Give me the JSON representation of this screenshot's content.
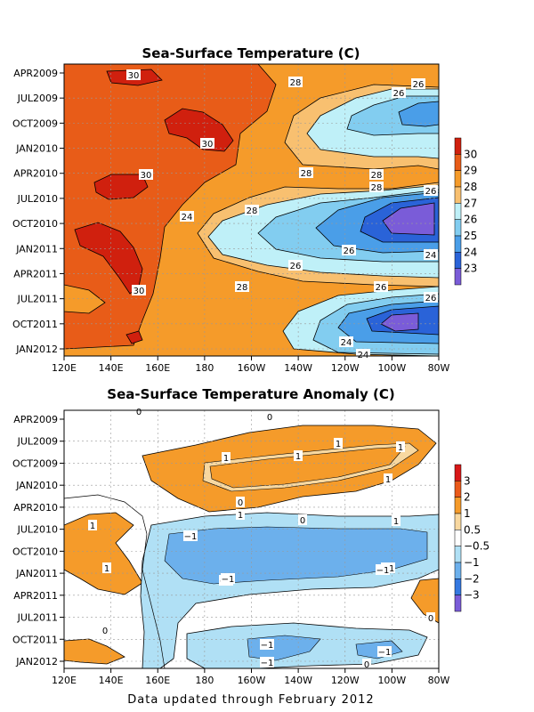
{
  "footer": "Data updated through February 2012",
  "chart_data": [
    {
      "type": "heatmap",
      "title": "Sea-Surface Temperature (C)",
      "x_tick_labels": [
        "120E",
        "140E",
        "160E",
        "180",
        "160W",
        "140W",
        "120W",
        "100W",
        "80W"
      ],
      "y_tick_labels": [
        "APR2009",
        "JUL2009",
        "OCT2009",
        "JAN2010",
        "APR2010",
        "JUL2010",
        "OCT2010",
        "JAN2011",
        "APR2011",
        "JUL2011",
        "OCT2011",
        "JAN2012"
      ],
      "colorbar_labels": [
        "30",
        "29",
        "28",
        "27",
        "26",
        "25",
        "24",
        "23"
      ],
      "colorbar_colors": [
        "#d0200e",
        "#e85c18",
        "#f59b2a",
        "#f8c070",
        "#bff0f8",
        "#82cdf0",
        "#4a9ee8",
        "#2a63d8",
        "#7a5cd8"
      ],
      "contour_labels": [
        "30",
        "28",
        "26",
        "30",
        "30",
        "28",
        "28",
        "28",
        "26",
        "24",
        "28",
        "26",
        "24",
        "26",
        "26",
        "30",
        "28",
        "26",
        "24",
        "24",
        "26"
      ],
      "xlabel": "",
      "ylabel": ""
    },
    {
      "type": "heatmap",
      "title": "Sea-Surface Temperature Anomaly (C)",
      "x_tick_labels": [
        "120E",
        "140E",
        "160E",
        "180",
        "160W",
        "140W",
        "120W",
        "100W",
        "80W"
      ],
      "y_tick_labels": [
        "APR2009",
        "JUL2009",
        "OCT2009",
        "JAN2010",
        "APR2010",
        "JUL2010",
        "OCT2010",
        "JAN2011",
        "APR2011",
        "JUL2011",
        "OCT2011",
        "JAN2012"
      ],
      "colorbar_labels": [
        "3",
        "2",
        "1",
        "0.5",
        "−0.5",
        "−1",
        "−2",
        "−3"
      ],
      "colorbar_colors": [
        "#d81818",
        "#ea5a1a",
        "#f59b2a",
        "#f8d8a0",
        "#ffffff",
        "#b0e0f5",
        "#6cb0ec",
        "#3478e0",
        "#7a5cd8"
      ],
      "contour_labels": [
        "0",
        "0",
        "1",
        "1",
        "1",
        "1",
        "1",
        "0",
        "1",
        "1",
        "0",
        "−1",
        "−1",
        "−1",
        "1",
        "1",
        "−1",
        "−1",
        "0",
        "0",
        "−1",
        "−1",
        "−1",
        "0"
      ],
      "xlabel": "",
      "ylabel": ""
    }
  ]
}
